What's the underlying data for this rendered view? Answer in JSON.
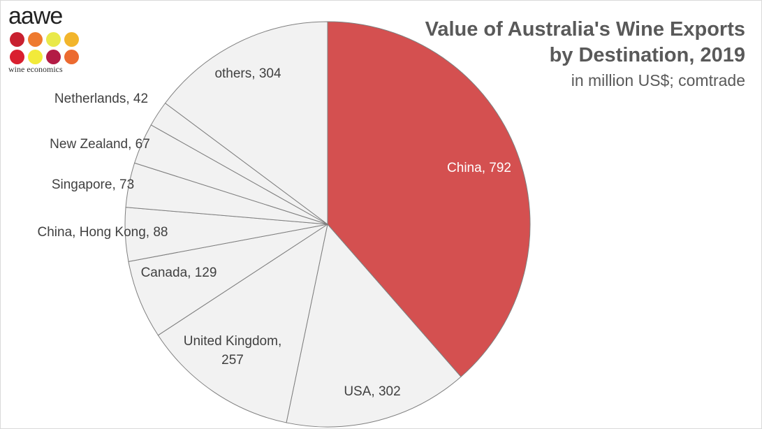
{
  "logo": {
    "wordmark": "aawe",
    "subtitle": "wine economics",
    "dot_colors": [
      "#c8202f",
      "#ee7a2e",
      "#e9e94a",
      "#f2b52c",
      "#d91f2f",
      "#f2ea3a",
      "#b31b45",
      "#ec6a30"
    ]
  },
  "title": {
    "line1": "Value of Australia's Wine Exports",
    "line2": "by Destination, 2019",
    "subtitle": "in million US$; comtrade"
  },
  "chart_data": {
    "type": "pie",
    "title": "Value of Australia's Wine Exports by Destination, 2019",
    "subtitle": "in million US$; comtrade",
    "start_angle_deg": 0,
    "direction": "clockwise",
    "slices": [
      {
        "label": "China",
        "value": 792,
        "display": "China, 792",
        "color": "#d45050",
        "label_color": "#ffffff"
      },
      {
        "label": "USA",
        "value": 302,
        "display": "USA, 302",
        "color": "#f2f2f2",
        "label_color": "#404040"
      },
      {
        "label": "United Kingdom",
        "value": 257,
        "display": [
          "United Kingdom,",
          "257"
        ],
        "color": "#f2f2f2",
        "label_color": "#404040"
      },
      {
        "label": "Canada",
        "value": 129,
        "display": "Canada, 129",
        "color": "#f2f2f2",
        "label_color": "#404040"
      },
      {
        "label": "China, Hong Kong",
        "value": 88,
        "display": "China, Hong Kong, 88",
        "color": "#f2f2f2",
        "label_color": "#404040"
      },
      {
        "label": "Singapore",
        "value": 73,
        "display": "Singapore, 73",
        "color": "#f2f2f2",
        "label_color": "#404040"
      },
      {
        "label": "New Zealand",
        "value": 67,
        "display": "New Zealand, 67",
        "color": "#f2f2f2",
        "label_color": "#404040"
      },
      {
        "label": "Netherlands",
        "value": 42,
        "display": "Netherlands, 42",
        "color": "#f2f2f2",
        "label_color": "#404040"
      },
      {
        "label": "others",
        "value": 304,
        "display": "others, 304",
        "color": "#f2f2f2",
        "label_color": "#404040"
      }
    ],
    "stroke_color": "#7f7f7f"
  }
}
